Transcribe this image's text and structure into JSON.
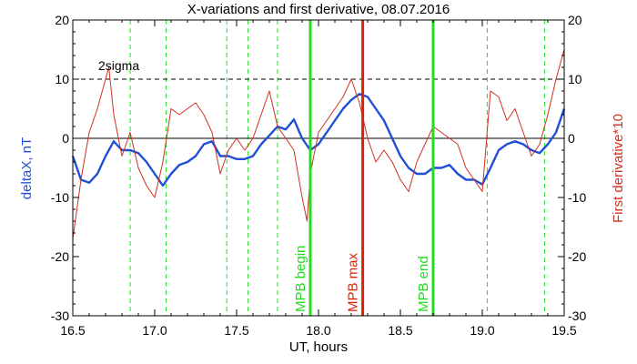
{
  "chart_data": {
    "type": "line",
    "title": "X-variations and first derivative, 08.07.2016",
    "xlabel": "UT, hours",
    "ylabel_left": "deltaX, nT",
    "ylabel_right": "First derivative*10",
    "xlim": [
      16.5,
      19.5
    ],
    "ylim": [
      -30,
      20
    ],
    "x_ticks": [
      "16.5",
      "17.0",
      "17.5",
      "18.0",
      "18.5",
      "19.0",
      "19.5"
    ],
    "y_ticks": [
      "-30",
      "-20",
      "-10",
      "0",
      "10",
      "20"
    ],
    "sigma_level": 10,
    "sigma_label": "2sigma",
    "zero_level": 0,
    "colors": {
      "deltaX": "#1f4fd6",
      "derivative": "#d03020",
      "green": "#22dd22",
      "red": "#dd2200"
    },
    "series": [
      {
        "name": "deltaX, nT",
        "x": [
          16.5,
          16.55,
          16.6,
          16.65,
          16.7,
          16.75,
          16.8,
          16.85,
          16.9,
          16.95,
          17.0,
          17.05,
          17.1,
          17.15,
          17.2,
          17.25,
          17.3,
          17.35,
          17.4,
          17.45,
          17.5,
          17.55,
          17.6,
          17.65,
          17.7,
          17.75,
          17.8,
          17.85,
          17.9,
          17.95,
          18.0,
          18.05,
          18.1,
          18.15,
          18.2,
          18.25,
          18.3,
          18.35,
          18.4,
          18.45,
          18.5,
          18.55,
          18.6,
          18.65,
          18.7,
          18.75,
          18.8,
          18.85,
          18.9,
          18.95,
          19.0,
          19.05,
          19.1,
          19.15,
          19.2,
          19.25,
          19.3,
          19.35,
          19.4,
          19.45,
          19.5
        ],
        "values": [
          -3,
          -7,
          -7.5,
          -6,
          -3,
          -0.5,
          -2,
          -2,
          -2.5,
          -4,
          -6,
          -8,
          -6,
          -4.5,
          -4,
          -3,
          -1,
          -0.5,
          -3,
          -3,
          -3.5,
          -3.5,
          -3,
          -1,
          0.5,
          2,
          1.5,
          3.2,
          0,
          -2,
          -1,
          1,
          3,
          5,
          6.5,
          7.5,
          7,
          5,
          3,
          0,
          -3,
          -5,
          -6,
          -6,
          -5,
          -5,
          -4.5,
          -6,
          -7,
          -7,
          -7.8,
          -5,
          -2,
          -1,
          -0.5,
          -1,
          -2,
          -2.5,
          -1,
          1,
          5
        ]
      },
      {
        "name": "First derivative*10",
        "x": [
          16.5,
          16.55,
          16.6,
          16.65,
          16.7,
          16.72,
          16.75,
          16.8,
          16.85,
          16.9,
          16.95,
          17.0,
          17.05,
          17.1,
          17.15,
          17.2,
          17.25,
          17.3,
          17.35,
          17.4,
          17.45,
          17.5,
          17.55,
          17.6,
          17.65,
          17.7,
          17.75,
          17.8,
          17.85,
          17.9,
          17.93,
          17.95,
          18.0,
          18.05,
          18.1,
          18.15,
          18.2,
          18.25,
          18.3,
          18.35,
          18.4,
          18.45,
          18.5,
          18.55,
          18.6,
          18.65,
          18.7,
          18.75,
          18.8,
          18.85,
          18.9,
          18.95,
          19.0,
          19.05,
          19.1,
          19.15,
          19.2,
          19.25,
          19.3,
          19.35,
          19.4,
          19.45,
          19.5
        ],
        "values": [
          -17,
          -7,
          1,
          5,
          10,
          12,
          4,
          -3,
          1,
          -5,
          -8,
          -10,
          -4,
          5,
          4,
          5,
          6,
          4,
          1,
          -6,
          -2,
          0,
          -2,
          0,
          4,
          8,
          2,
          0,
          -2,
          -10,
          -14,
          -6,
          1,
          3,
          5,
          7,
          10,
          6,
          0,
          -4,
          -2,
          -4,
          -7,
          -9,
          -4,
          -1,
          2,
          1,
          0,
          -1,
          -5,
          -7,
          -9,
          8,
          7,
          3,
          5,
          1,
          -3,
          -1,
          4,
          10,
          15
        ]
      }
    ],
    "green_dashed_x": [
      16.85,
      17.07,
      17.44,
      17.57,
      17.75,
      19.03,
      19.38
    ],
    "event_lines": [
      {
        "x": 17.95,
        "label": "MPB begin",
        "color": "green"
      },
      {
        "x": 18.27,
        "label": "MPB max",
        "color": "red"
      },
      {
        "x": 18.7,
        "label": "MPB end",
        "color": "green"
      }
    ]
  }
}
